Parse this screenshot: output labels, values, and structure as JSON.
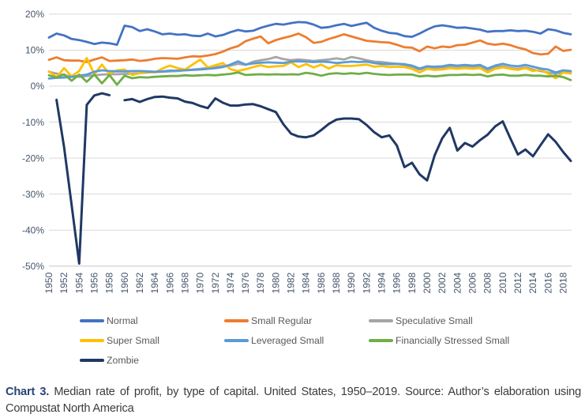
{
  "figure": {
    "caption": {
      "label": "Chart 3.",
      "text": " Median rate of profit, by type of capital. United States, 1950–2019. Source: Author’s elaboration using Compustat North America"
    }
  },
  "style_colors": {
    "grid": "#D9D9D9",
    "axis_labels": "#44546A",
    "legend_text": "#595959",
    "caption_label": "#264478",
    "caption_text": "#3B3B3B"
  },
  "chart_data": {
    "type": "line",
    "title": "",
    "xlabel": "",
    "ylabel": "",
    "x_range": [
      1950,
      2019
    ],
    "ylim": [
      -50,
      20
    ],
    "grid": "horizontal",
    "legend_position": "bottom",
    "y_ticks": [
      20,
      10,
      0,
      -10,
      -20,
      -30,
      -40,
      -50
    ],
    "y_tick_labels": [
      "20%",
      "10%",
      "0%",
      "-10%",
      "-20%",
      "-30%",
      "-40%",
      "-50%"
    ],
    "x_tick_step": 2,
    "x_tick_labels": [
      "1950",
      "1952",
      "1954",
      "1956",
      "1958",
      "1960",
      "1962",
      "1964",
      "1966",
      "1968",
      "1970",
      "1972",
      "1974",
      "1976",
      "1978",
      "1980",
      "1982",
      "1984",
      "1986",
      "1988",
      "1990",
      "1992",
      "1994",
      "1996",
      "1998",
      "2000",
      "2002",
      "2004",
      "2006",
      "2008",
      "2010",
      "2012",
      "2014",
      "2016",
      "2018"
    ],
    "series": [
      {
        "name": "Normal",
        "color": "#4472C4",
        "legend_row": 0,
        "legend_col": 0,
        "values": [
          13.5,
          14.6,
          14.1,
          13.1,
          12.8,
          12.3,
          11.7,
          12.1,
          11.9,
          11.5,
          16.8,
          16.4,
          15.3,
          15.8,
          15.2,
          14.4,
          14.6,
          14.3,
          14.4,
          14.0,
          13.9,
          14.6,
          13.8,
          14.2,
          15.0,
          15.6,
          15.2,
          15.4,
          16.2,
          16.8,
          17.3,
          17.1,
          17.5,
          17.8,
          17.7,
          17.1,
          16.2,
          16.4,
          16.9,
          17.3,
          16.7,
          17.2,
          17.6,
          16.2,
          15.4,
          14.8,
          14.6,
          13.9,
          13.7,
          14.6,
          15.7,
          16.6,
          16.9,
          16.6,
          16.2,
          16.3,
          16.0,
          15.7,
          15.1,
          15.3,
          15.3,
          15.5,
          15.3,
          15.4,
          15.1,
          14.6,
          15.8,
          15.5,
          14.8,
          14.4
        ]
      },
      {
        "name": "Small Regular",
        "color": "#ED7D31",
        "legend_row": 0,
        "legend_col": 1,
        "values": [
          7.3,
          8.0,
          7.2,
          7.1,
          7.1,
          6.7,
          7.4,
          8.0,
          7.0,
          7.1,
          7.2,
          7.4,
          7.0,
          7.2,
          7.6,
          7.8,
          7.7,
          7.6,
          8.0,
          8.3,
          8.2,
          8.5,
          8.9,
          9.6,
          10.5,
          11.1,
          12.5,
          13.2,
          13.8,
          11.9,
          12.8,
          13.4,
          13.9,
          14.6,
          13.6,
          12.0,
          12.3,
          13.1,
          13.7,
          14.4,
          13.8,
          13.2,
          12.6,
          12.4,
          12.2,
          12.1,
          11.5,
          10.8,
          10.7,
          9.7,
          11.0,
          10.5,
          11.0,
          10.8,
          11.4,
          11.5,
          12.1,
          12.7,
          11.8,
          11.5,
          11.8,
          11.4,
          10.7,
          10.2,
          9.2,
          8.8,
          9.0,
          11.0,
          9.8,
          10.1
        ]
      },
      {
        "name": "Speculative Small",
        "color": "#A5A5A5",
        "legend_row": 0,
        "legend_col": 2,
        "values": [
          4.0,
          3.5,
          3.0,
          2.7,
          2.6,
          2.8,
          3.0,
          3.2,
          3.3,
          3.3,
          3.4,
          3.5,
          3.6,
          3.8,
          3.9,
          4.0,
          4.1,
          4.2,
          4.4,
          4.6,
          4.8,
          5.0,
          5.2,
          5.6,
          5.7,
          6.2,
          5.9,
          6.8,
          7.2,
          7.5,
          8.1,
          7.5,
          7.2,
          7.4,
          7.2,
          7.0,
          7.2,
          7.4,
          7.7,
          7.4,
          8.1,
          7.7,
          7.2,
          6.8,
          6.7,
          6.4,
          6.2,
          5.9,
          5.2,
          4.6,
          5.2,
          5.0,
          5.2,
          5.5,
          5.2,
          5.4,
          5.2,
          5.4,
          4.5,
          5.2,
          5.5,
          5.0,
          4.8,
          5.2,
          4.6,
          4.2,
          3.8,
          3.5,
          3.8,
          3.7
        ]
      },
      {
        "name": "Super Small",
        "color": "#FFC000",
        "legend_row": 1,
        "legend_col": 0,
        "values": [
          4.1,
          2.5,
          5.0,
          2.7,
          4.2,
          7.8,
          3.3,
          6.0,
          3.4,
          4.4,
          4.6,
          3.1,
          3.6,
          4.0,
          3.8,
          4.9,
          5.7,
          5.0,
          4.6,
          6.0,
          7.4,
          5.2,
          5.8,
          6.4,
          4.7,
          4.2,
          4.7,
          5.3,
          5.8,
          5.3,
          5.5,
          5.6,
          6.6,
          5.3,
          6.1,
          5.2,
          6.0,
          4.9,
          5.8,
          5.6,
          5.6,
          5.8,
          6.0,
          5.4,
          5.6,
          5.3,
          5.4,
          5.3,
          4.8,
          3.8,
          4.8,
          4.5,
          4.6,
          5.0,
          4.8,
          5.0,
          4.8,
          5.0,
          3.8,
          4.8,
          5.2,
          4.8,
          4.5,
          5.0,
          4.2,
          4.6,
          3.5,
          2.2,
          3.8,
          3.5
        ]
      },
      {
        "name": "Leveraged Small",
        "color": "#5B9BD5",
        "legend_row": 1,
        "legend_col": 1,
        "values": [
          2.1,
          2.3,
          2.4,
          2.6,
          2.9,
          3.2,
          4.0,
          4.4,
          4.2,
          4.1,
          4.1,
          4.2,
          4.2,
          4.1,
          4.0,
          4.1,
          4.3,
          4.3,
          4.4,
          4.5,
          4.6,
          4.8,
          5.0,
          5.3,
          6.0,
          6.9,
          6.0,
          6.3,
          6.5,
          6.6,
          6.5,
          6.4,
          6.8,
          6.9,
          6.8,
          6.7,
          6.8,
          6.7,
          6.4,
          6.6,
          6.8,
          6.7,
          6.8,
          6.4,
          6.2,
          6.1,
          6.2,
          6.1,
          5.7,
          4.9,
          5.5,
          5.4,
          5.5,
          5.9,
          5.7,
          5.9,
          5.7,
          5.9,
          4.9,
          5.7,
          6.2,
          5.7,
          5.5,
          5.9,
          5.4,
          4.9,
          4.6,
          3.8,
          4.4,
          4.2
        ]
      },
      {
        "name": "Financially Stressed Small",
        "color": "#70AD47",
        "legend_row": 1,
        "legend_col": 2,
        "values": [
          3.0,
          2.4,
          3.3,
          1.5,
          3.2,
          1.2,
          3.2,
          0.8,
          3.1,
          0.4,
          2.9,
          2.2,
          2.5,
          2.4,
          2.6,
          2.7,
          2.8,
          2.8,
          3.0,
          2.9,
          3.0,
          3.1,
          3.0,
          3.2,
          3.4,
          3.8,
          3.1,
          3.2,
          3.3,
          3.2,
          3.3,
          3.2,
          3.3,
          3.2,
          3.7,
          3.4,
          2.9,
          3.4,
          3.6,
          3.4,
          3.6,
          3.4,
          3.7,
          3.4,
          3.2,
          3.1,
          3.2,
          3.2,
          3.2,
          2.7,
          2.9,
          2.7,
          2.9,
          3.1,
          3.1,
          3.2,
          3.1,
          3.2,
          2.7,
          3.1,
          3.2,
          2.9,
          2.9,
          3.1,
          2.9,
          2.9,
          2.7,
          2.9,
          2.5,
          1.7
        ]
      },
      {
        "name": "Zombie",
        "color": "#203864",
        "legend_row": 2,
        "legend_col": 0,
        "values": [
          null,
          -3.8,
          -17.0,
          -33.0,
          -49.3,
          -5.2,
          -2.6,
          -2.0,
          -2.5,
          null,
          -3.9,
          -3.6,
          -4.4,
          -3.6,
          -3.0,
          -2.9,
          -3.2,
          -3.4,
          -4.3,
          -4.7,
          -5.5,
          -6.1,
          -3.4,
          -4.6,
          -5.4,
          -5.4,
          -5.1,
          -5.0,
          -5.6,
          -6.4,
          -7.2,
          -10.6,
          -13.2,
          -14.0,
          -14.2,
          -13.7,
          -12.2,
          -10.5,
          -9.3,
          -9.0,
          -9.0,
          -9.2,
          -10.8,
          -12.8,
          -14.2,
          -13.7,
          -16.5,
          -22.5,
          -21.3,
          -24.5,
          -26.2,
          -19.2,
          -14.5,
          -11.6,
          -17.9,
          -15.8,
          -16.8,
          -15.0,
          -13.5,
          -11.2,
          -9.8,
          -14.5,
          -19.0,
          -17.6,
          -19.5,
          -16.4,
          -13.4,
          -15.5,
          -18.3,
          -20.8
        ]
      }
    ]
  }
}
